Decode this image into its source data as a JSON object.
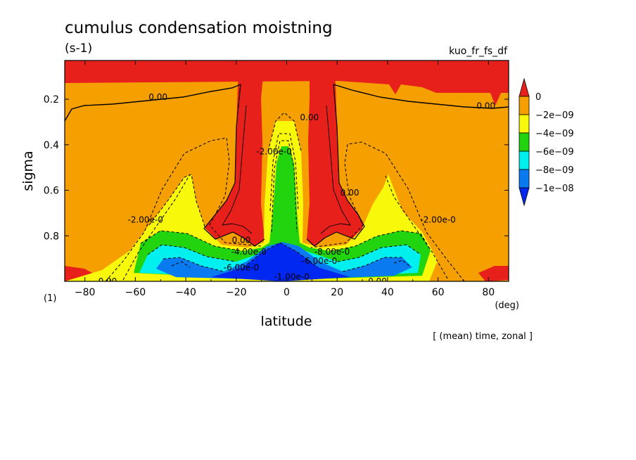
{
  "chart_data": {
    "type": "heatmap",
    "title": "cumulus condensation moistning",
    "units": "(s-1)",
    "variable_id": "kuo_fr_fs_df",
    "xlabel": "latitude",
    "ylabel": "sigma",
    "x_unit": "(deg)",
    "y_unit": "(1)",
    "footnote": "[ (mean) time, zonal ]",
    "xlim": [
      -88,
      88
    ],
    "ylim": [
      1.0,
      0.03
    ],
    "x_ticks": [
      -80,
      -60,
      -40,
      -20,
      0,
      20,
      40,
      60,
      80
    ],
    "x_tick_labels": [
      "−80",
      "−60",
      "−40",
      "−20",
      "0",
      "20",
      "40",
      "60",
      "80"
    ],
    "y_ticks": [
      0.2,
      0.4,
      0.6,
      0.8
    ],
    "y_tick_labels": [
      "0.2",
      "0.4",
      "0.6",
      "0.8"
    ],
    "colorbar": {
      "levels": [
        0,
        -2e-09,
        -4e-09,
        -6e-09,
        -8e-09,
        -1e-08
      ],
      "labels": [
        "0",
        "−2e−09",
        "−4e−09",
        "−6e−09",
        "−8e−09",
        "−1e−08"
      ],
      "colors": [
        "#e8201c",
        "#f5a000",
        "#f8f80a",
        "#22d40e",
        "#00f0f0",
        "#0a7af0",
        "#0028f0"
      ]
    },
    "contour_labels": [
      {
        "text": "0.00",
        "x": -51,
        "y": 0.19
      },
      {
        "text": "0.00",
        "x": 79,
        "y": 0.23
      },
      {
        "text": "0.00",
        "x": 9,
        "y": 0.28
      },
      {
        "text": "0.00",
        "x": 25,
        "y": 0.61
      },
      {
        "text": "0.00",
        "x": -18,
        "y": 0.82
      },
      {
        "text": "0.00",
        "x": -71,
        "y": 1.0
      },
      {
        "text": "0.00",
        "x": 36,
        "y": 1.0
      },
      {
        "text": "-2.00e-0",
        "x": -5,
        "y": 0.43
      },
      {
        "text": "-2.00e-0",
        "x": -56,
        "y": 0.73
      },
      {
        "text": "-2.00e-0",
        "x": 60,
        "y": 0.73
      },
      {
        "text": "-4.00e-0",
        "x": -15,
        "y": 0.87
      },
      {
        "text": "-8.00e-0",
        "x": 18,
        "y": 0.87
      },
      {
        "text": "-6.00e-0",
        "x": 13,
        "y": 0.91
      },
      {
        "text": "-6.00e-0",
        "x": -18,
        "y": 0.94
      },
      {
        "text": "-1.00e-0",
        "x": 2,
        "y": 0.98
      }
    ]
  },
  "colors": {
    "background": "#ffffff",
    "frame": "#000000"
  }
}
